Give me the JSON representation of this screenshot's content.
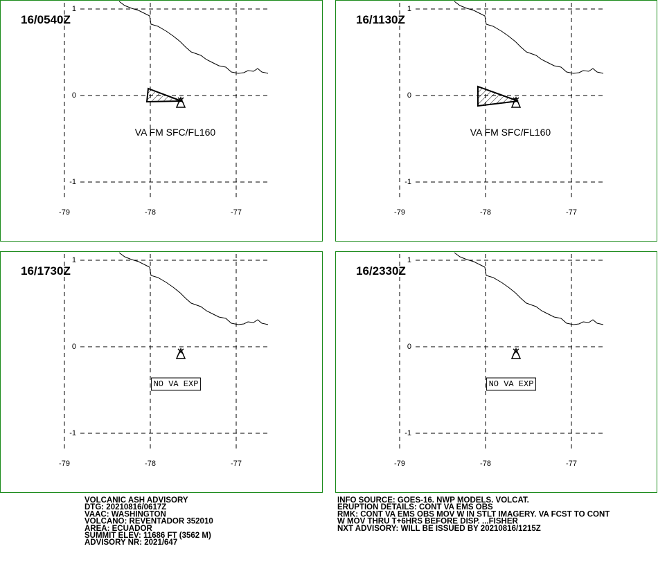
{
  "xlim": [
    -79.75,
    -76.0
  ],
  "ylim": [
    -1.68,
    1.104
  ],
  "lon_ticks": [
    -79,
    -78,
    -77
  ],
  "lat_ticks": [
    1,
    0,
    -1
  ],
  "maps": [
    {
      "time": "16/0540Z",
      "annotation": "VA FM SFC/FL160",
      "boxed": false,
      "ash": [
        [
          214,
          128
        ],
        [
          212,
          147
        ],
        [
          262,
          146
        ]
      ]
    },
    {
      "time": "16/1130Z",
      "annotation": "VA FM SFC/FL160",
      "boxed": false,
      "ash": [
        [
          690,
          125
        ],
        [
          690,
          153
        ],
        [
          748,
          146
        ]
      ]
    },
    {
      "time": "16/1730Z",
      "annotation": "NO VA EXP",
      "boxed": true
    },
    {
      "time": "16/2330Z",
      "annotation": "NO VA EXP",
      "boxed": true
    }
  ],
  "advisory_left": [
    "VOLCANIC ASH ADVISORY",
    "DTG: 20210816/0617Z",
    "VAAC: WASHINGTON",
    "VOLCANO: REVENTADOR 352010",
    "AREA: ECUADOR",
    "SUMMIT ELEV: 11686 FT (3562 M)",
    "ADVISORY NR: 2021/647"
  ],
  "advisory_right": [
    "INFO SOURCE: GOES-16. NWP MODELS. VOLCAT.",
    "ERUPTION DETAILS: CONT VA EMS OBS",
    "RMK: CONT VA EMS OBS MOV W IN STLT IMAGERY. VA FCST TO CONT",
    "W MOV THRU T+6HRS BEFORE DISP. ...FISHER",
    "NXT ADVISORY: WILL BE ISSUED BY 20210816/1215Z"
  ]
}
